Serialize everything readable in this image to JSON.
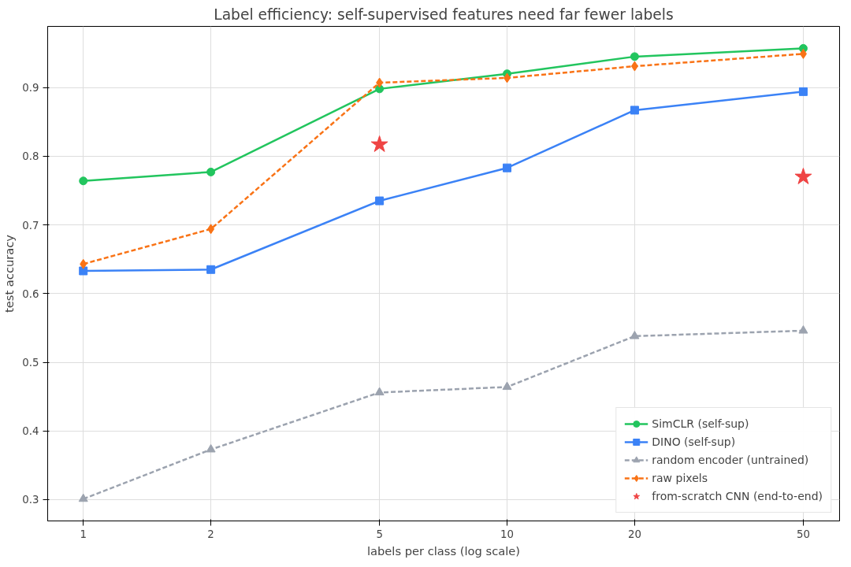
{
  "chart_data": {
    "type": "line",
    "title": "Label efficiency: self-supervised features need far fewer labels",
    "xlabel": "labels per class (log scale)",
    "ylabel": "test accuracy",
    "log": "x",
    "x": [
      1,
      2,
      5,
      10,
      20,
      50
    ],
    "series": [
      {
        "name": "SimCLR (self-sup)",
        "color": "#22c55e",
        "marker": "circle",
        "line_style": "solid",
        "values": [
          0.764,
          0.777,
          0.898,
          0.92,
          0.945,
          0.957
        ]
      },
      {
        "name": "DINO (self-sup)",
        "color": "#3b82f6",
        "marker": "square",
        "line_style": "solid",
        "values": [
          0.633,
          0.635,
          0.735,
          0.783,
          0.867,
          0.894
        ]
      },
      {
        "name": "random encoder (untrained)",
        "color": "#9ca3af",
        "marker": "triangle",
        "line_style": "dashed",
        "values": [
          0.301,
          0.373,
          0.456,
          0.464,
          0.538,
          0.546
        ]
      },
      {
        "name": "raw pixels",
        "color": "#f97316",
        "marker": "diamond",
        "line_style": "dashed",
        "values": [
          0.643,
          0.694,
          0.907,
          0.914,
          0.931,
          0.949
        ]
      },
      {
        "name": "from-scratch CNN (end-to-end)",
        "color": "#ef4444",
        "type": "scatter",
        "marker": "star",
        "x": [
          5,
          50
        ],
        "values": [
          0.817,
          0.77
        ]
      }
    ],
    "xlim": [
      0.824,
      60.9
    ],
    "ylim": [
      0.269,
      0.989
    ],
    "xticks": [
      1,
      2,
      5,
      10,
      20,
      50
    ],
    "yticks": [
      {
        "value": 0.3,
        "label": "0.3"
      },
      {
        "value": 0.4,
        "label": "0.4"
      },
      {
        "value": 0.5,
        "label": "0.5"
      },
      {
        "value": 0.6,
        "label": "0.6"
      },
      {
        "value": 0.7,
        "label": "0.7"
      },
      {
        "value": 0.8,
        "label": "0.8"
      },
      {
        "value": 0.9,
        "label": "0.9"
      }
    ],
    "grid": true,
    "legend": "bottom right"
  }
}
